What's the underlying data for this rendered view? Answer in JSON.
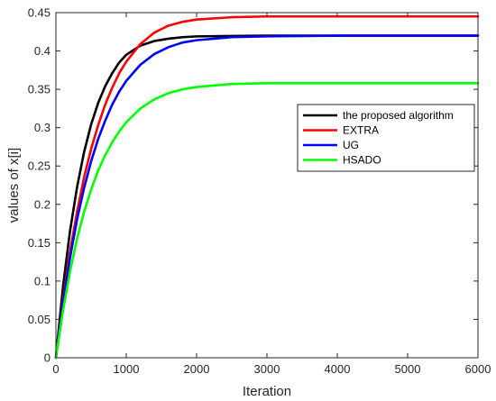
{
  "chart_data": {
    "type": "line",
    "title": "",
    "xlabel": "Iteration",
    "ylabel": "values of x[i]",
    "xlim": [
      0,
      6000
    ],
    "ylim": [
      0,
      0.45
    ],
    "xticks": [
      0,
      1000,
      2000,
      3000,
      4000,
      5000,
      6000
    ],
    "yticks": [
      0,
      0.05,
      0.1,
      0.15,
      0.2,
      0.25,
      0.3,
      0.35,
      0.4,
      0.45
    ],
    "xtick_labels": [
      "0",
      "1000",
      "2000",
      "3000",
      "4000",
      "5000",
      "6000"
    ],
    "ytick_labels": [
      "0",
      "0.05",
      "0.1",
      "0.15",
      "0.2",
      "0.25",
      "0.3",
      "0.35",
      "0.4",
      "0.45"
    ],
    "grid": false,
    "legend_position": "right",
    "series": [
      {
        "name": "the proposed algorithm",
        "color": "#000000",
        "x": [
          0,
          100,
          200,
          300,
          400,
          500,
          600,
          700,
          800,
          900,
          1000,
          1200,
          1400,
          1600,
          1800,
          2000,
          2500,
          3000,
          4000,
          5000,
          6000
        ],
        "y": [
          0,
          0.092,
          0.165,
          0.222,
          0.268,
          0.304,
          0.332,
          0.354,
          0.371,
          0.385,
          0.395,
          0.407,
          0.413,
          0.416,
          0.418,
          0.419,
          0.4195,
          0.42,
          0.42,
          0.42,
          0.42
        ]
      },
      {
        "name": "EXTRA",
        "color": "#ff0000",
        "x": [
          0,
          100,
          200,
          300,
          400,
          500,
          600,
          700,
          800,
          900,
          1000,
          1200,
          1400,
          1600,
          1800,
          2000,
          2500,
          3000,
          4000,
          5000,
          6000
        ],
        "y": [
          0,
          0.075,
          0.138,
          0.19,
          0.235,
          0.272,
          0.303,
          0.33,
          0.352,
          0.371,
          0.386,
          0.409,
          0.424,
          0.433,
          0.438,
          0.441,
          0.444,
          0.445,
          0.445,
          0.445,
          0.445
        ]
      },
      {
        "name": "UG",
        "color": "#0000ff",
        "x": [
          0,
          100,
          200,
          300,
          400,
          500,
          600,
          700,
          800,
          900,
          1000,
          1200,
          1400,
          1600,
          1800,
          2000,
          2500,
          3000,
          4000,
          5000,
          6000
        ],
        "y": [
          0,
          0.071,
          0.13,
          0.18,
          0.221,
          0.256,
          0.285,
          0.309,
          0.33,
          0.347,
          0.361,
          0.382,
          0.396,
          0.405,
          0.411,
          0.414,
          0.418,
          0.419,
          0.42,
          0.42,
          0.42
        ]
      },
      {
        "name": "HSADO",
        "color": "#00ff00",
        "x": [
          0,
          100,
          200,
          300,
          400,
          500,
          600,
          700,
          800,
          900,
          1000,
          1200,
          1400,
          1600,
          1800,
          2000,
          2500,
          3000,
          4000,
          5000,
          6000
        ],
        "y": [
          0,
          0.061,
          0.112,
          0.155,
          0.19,
          0.219,
          0.244,
          0.264,
          0.281,
          0.295,
          0.307,
          0.325,
          0.337,
          0.345,
          0.35,
          0.353,
          0.357,
          0.358,
          0.358,
          0.358,
          0.358
        ]
      }
    ]
  }
}
